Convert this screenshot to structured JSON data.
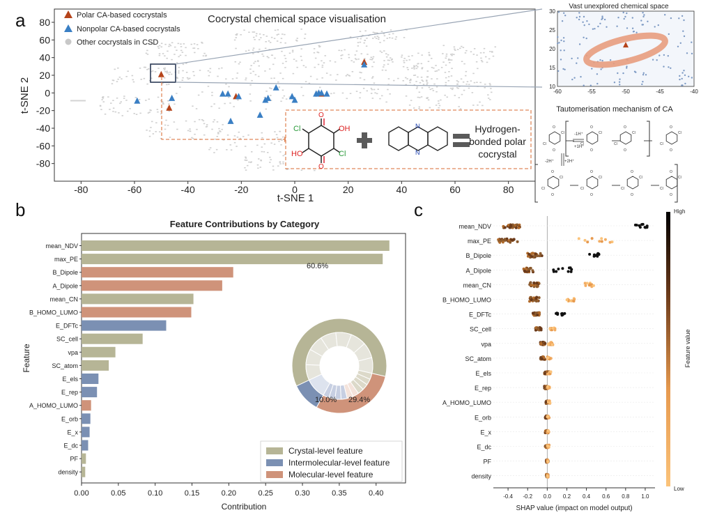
{
  "panel_labels": {
    "a": "a",
    "b": "b",
    "c": "c"
  },
  "panel_a": {
    "title": "Cocrystal chemical space visualisation",
    "legend": [
      "Polar CA-based cocrystals",
      "Nonpolar CA-based cocrystals",
      "Other cocrystals in CSD"
    ],
    "xlabel": "t-SNE 1",
    "ylabel": "t-SNE 2",
    "xticks": [
      "-80",
      "-60",
      "-40",
      "-20",
      "0",
      "20",
      "40",
      "60",
      "80"
    ],
    "yticks": [
      "80",
      "60",
      "40",
      "20",
      "0",
      "-20",
      "-40",
      "-60",
      "-80"
    ],
    "colors": {
      "polar": "#b5441b",
      "nonpolar": "#3a7fc4",
      "other": "#c8c8c8"
    },
    "reaction": {
      "product_line1": "Hydrogen-",
      "product_line2": "bonded polar",
      "product_line3": "cocrystal",
      "atom_cl": "Cl",
      "atom_oh": "OH",
      "atom_ho": "HO",
      "atom_o": "O",
      "atom_n": "N"
    },
    "chart_data": {
      "type": "scatter",
      "xlim": [
        -90,
        90
      ],
      "ylim": [
        -100,
        95
      ],
      "series": [
        {
          "name": "Polar CA-based cocrystals",
          "marker": "triangle",
          "points": [
            [
              -50,
              21
            ],
            [
              -47,
              -17
            ],
            [
              -22,
              -4
            ],
            [
              10,
              -1
            ],
            [
              26,
              35
            ]
          ]
        },
        {
          "name": "Nonpolar CA-based cocrystals",
          "marker": "triangle",
          "points": [
            [
              -59,
              -9
            ],
            [
              -46,
              -6
            ],
            [
              -27,
              -1
            ],
            [
              -25,
              -1
            ],
            [
              -24,
              -32
            ],
            [
              -21,
              -4
            ],
            [
              -13,
              -25
            ],
            [
              -11,
              -8
            ],
            [
              -10,
              -6
            ],
            [
              -7,
              6
            ],
            [
              -1,
              -4
            ],
            [
              0,
              -8
            ],
            [
              8,
              -1
            ],
            [
              9,
              0
            ],
            [
              10,
              0
            ],
            [
              12,
              -1
            ],
            [
              26,
              32
            ]
          ]
        }
      ]
    }
  },
  "inset": {
    "title": "Vast unexplored chemical space",
    "xticks": [
      "-60",
      "-55",
      "-50",
      "-45",
      "-40"
    ],
    "yticks": [
      "30",
      "25",
      "20",
      "15",
      "10"
    ],
    "chart_data": {
      "type": "scatter",
      "xlim": [
        -60,
        -40
      ],
      "ylim": [
        10,
        30
      ],
      "marker_point": [
        -50,
        21
      ]
    }
  },
  "tautomer": {
    "title": "Tautomerisation  mechanism of CA",
    "labels": {
      "h_minus": "-1H⁺",
      "h_plus": "+1H⁺",
      "h2_minus": "-2H⁺",
      "h2_plus": "+2H⁺",
      "cl": "Cl",
      "o": "O",
      "oh": "OH",
      "ho": "HO",
      "o_minus": "O⁻"
    }
  },
  "panel_b": {
    "chart_data": {
      "type": "bar",
      "orientation": "horizontal",
      "title": "Feature Contributions by Category",
      "xlabel": "Contribution",
      "ylabel": "Feature",
      "xlim": [
        0,
        0.44
      ],
      "xticks": [
        "0.00",
        "0.05",
        "0.10",
        "0.15",
        "0.20",
        "0.25",
        "0.30",
        "0.35",
        "0.40"
      ],
      "categories": [
        "mean_NDV",
        "max_PE",
        "B_Dipole",
        "A_Dipole",
        "mean_CN",
        "B_HOMO_LUMO",
        "E_DFTc",
        "SC_cell",
        "vpa",
        "SC_atom",
        "E_els",
        "E_rep",
        "A_HOMO_LUMO",
        "E_orb",
        "E_x",
        "E_dc",
        "PF",
        "density"
      ],
      "values": [
        0.418,
        0.409,
        0.206,
        0.191,
        0.152,
        0.149,
        0.115,
        0.083,
        0.046,
        0.037,
        0.023,
        0.021,
        0.013,
        0.012,
        0.011,
        0.009,
        0.006,
        0.005
      ],
      "groups": [
        "crystal",
        "crystal",
        "molecular",
        "molecular",
        "crystal",
        "molecular",
        "intermolecular",
        "crystal",
        "crystal",
        "crystal",
        "intermolecular",
        "intermolecular",
        "molecular",
        "intermolecular",
        "intermolecular",
        "intermolecular",
        "crystal",
        "crystal"
      ],
      "legend": [
        {
          "key": "crystal",
          "label": "Crystal-level feature",
          "color": "#b6b596"
        },
        {
          "key": "intermolecular",
          "label": "Intermolecular-level feature",
          "color": "#7b90b3"
        },
        {
          "key": "molecular",
          "label": "Molecular-level feature",
          "color": "#cf937a"
        }
      ],
      "legend_position": "lower-right",
      "pie": {
        "labels": [
          "60.6%",
          "10.0%",
          "29.4%"
        ],
        "outer": [
          {
            "key": "crystal",
            "value": 60.6,
            "color": "#b6b596"
          },
          {
            "key": "intermolecular",
            "value": 10.0,
            "color": "#7b90b3"
          },
          {
            "key": "molecular",
            "value": 29.4,
            "color": "#cf937a"
          }
        ]
      }
    }
  },
  "panel_c": {
    "chart_data": {
      "type": "scatter",
      "subtype": "shap-beeswarm",
      "xlabel": "SHAP value (impact on model output)",
      "xlim": [
        -0.55,
        1.1
      ],
      "xticks": [
        "-0.4",
        "-0.2",
        "0.0",
        "0.2",
        "0.4",
        "0.6",
        "0.8",
        "1.0"
      ],
      "colorbar_label": "Feature value",
      "colorbar_high": "High",
      "colorbar_low": "Low",
      "categories": [
        "mean_NDV",
        "max_PE",
        "B_Dipole",
        "A_Dipole",
        "mean_CN",
        "B_HOMO_LUMO",
        "E_DFTc",
        "SC_cell",
        "vpa",
        "SC_atom",
        "E_els",
        "E_rep",
        "A_HOMO_LUMO",
        "E_orb",
        "E_x",
        "E_dc",
        "PF",
        "density"
      ],
      "ranges": [
        {
          "low_min": -0.45,
          "low_max": -0.28,
          "high_min": 0.9,
          "high_max": 1.02
        },
        {
          "low_min": -0.5,
          "low_max": -0.3,
          "high_min": 0.32,
          "high_max": 0.7
        },
        {
          "low_min": -0.2,
          "low_max": -0.05,
          "high_min": 0.42,
          "high_max": 0.56
        },
        {
          "low_min": -0.24,
          "low_max": -0.14,
          "high_min": 0.05,
          "high_max": 0.28
        },
        {
          "low_min": -0.18,
          "low_max": -0.08,
          "high_min": 0.38,
          "high_max": 0.48
        },
        {
          "low_min": -0.18,
          "low_max": -0.08,
          "high_min": 0.2,
          "high_max": 0.28
        },
        {
          "low_min": -0.15,
          "low_max": -0.08,
          "high_min": 0.08,
          "high_max": 0.2
        },
        {
          "low_min": -0.12,
          "low_max": -0.06,
          "high_min": 0.02,
          "high_max": 0.08
        },
        {
          "low_min": -0.07,
          "low_max": -0.02,
          "high_min": 0.0,
          "high_max": 0.06
        },
        {
          "low_min": -0.07,
          "low_max": -0.02,
          "high_min": 0.0,
          "high_max": 0.04
        },
        {
          "low_min": -0.03,
          "low_max": 0.02,
          "high_min": 0.0,
          "high_max": 0.04
        },
        {
          "low_min": -0.03,
          "low_max": 0.0,
          "high_min": 0.0,
          "high_max": 0.03
        },
        {
          "low_min": -0.02,
          "low_max": 0.02,
          "high_min": 0.0,
          "high_max": 0.03
        },
        {
          "low_min": -0.02,
          "low_max": 0.01,
          "high_min": 0.0,
          "high_max": 0.02
        },
        {
          "low_min": -0.02,
          "low_max": 0.01,
          "high_min": 0.0,
          "high_max": 0.02
        },
        {
          "low_min": -0.02,
          "low_max": 0.01,
          "high_min": 0.0,
          "high_max": 0.02
        },
        {
          "low_min": -0.01,
          "low_max": 0.01,
          "high_min": 0.0,
          "high_max": 0.01
        },
        {
          "low_min": -0.01,
          "low_max": 0.01,
          "high_min": 0.0,
          "high_max": 0.01
        }
      ]
    }
  }
}
